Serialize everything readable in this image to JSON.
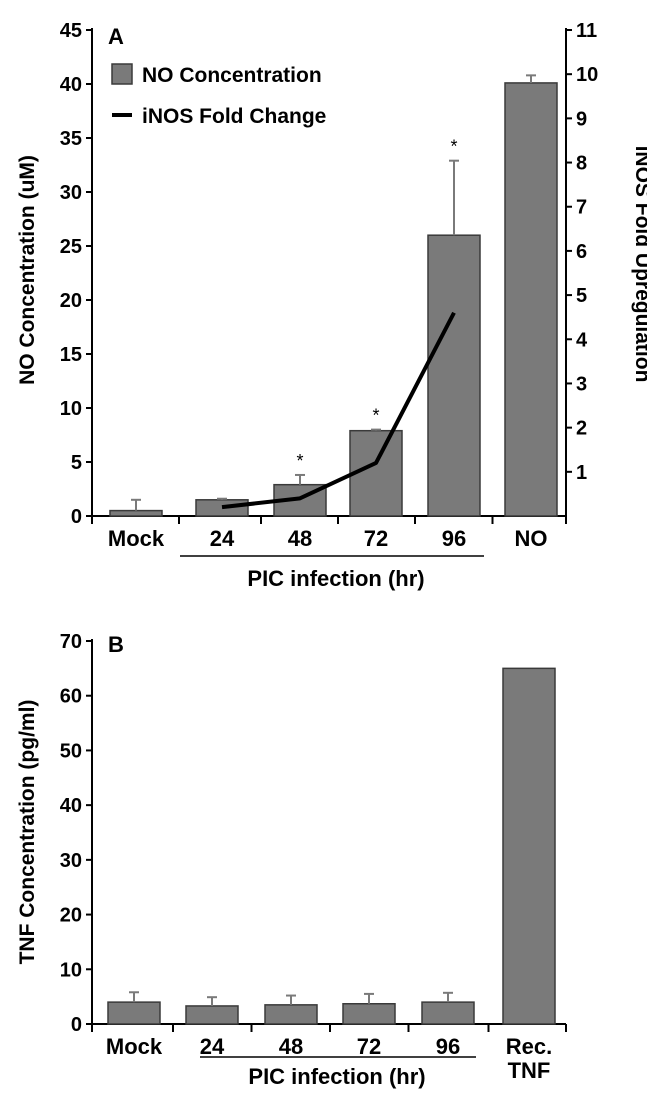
{
  "colors": {
    "bar_fill": "#7a7a7a",
    "bar_stroke": "#3a3a3a",
    "line": "#000000",
    "axis": "#000000"
  },
  "chart_data": [
    {
      "type": "bar",
      "panel_label": "A",
      "categories": [
        "Mock",
        "24",
        "48",
        "72",
        "96",
        "NO"
      ],
      "group_label": "PIC infection (hr)",
      "ylabel": "NO Concentration (uM)",
      "ylim": [
        0,
        45
      ],
      "yticks": [
        "0",
        "5",
        "10",
        "15",
        "20",
        "25",
        "30",
        "35",
        "40",
        "45"
      ],
      "y2label": "iNOS Fold Upregulation",
      "y2lim": [
        0,
        11
      ],
      "y2ticks": [
        "1",
        "2",
        "3",
        "4",
        "5",
        "6",
        "7",
        "8",
        "9",
        "10",
        "11"
      ],
      "legend": {
        "bar": "NO Concentration",
        "line": "iNOS Fold Change",
        "placement": "top-left"
      },
      "series": [
        {
          "name": "NO Concentration",
          "kind": "bar",
          "values": [
            0.5,
            1.5,
            2.9,
            7.9,
            26.0,
            40.1
          ],
          "errors": [
            1.0,
            0.1,
            0.9,
            0.1,
            6.9,
            0.7
          ],
          "markers": [
            "",
            "",
            "*",
            "*",
            "*",
            ""
          ]
        },
        {
          "name": "iNOS Fold Change",
          "kind": "line",
          "axis": "right",
          "x": [
            "24",
            "48",
            "72",
            "96"
          ],
          "values": [
            0.2,
            0.4,
            1.2,
            4.6
          ]
        }
      ],
      "grid": false
    },
    {
      "type": "bar",
      "panel_label": "B",
      "categories": [
        "Mock",
        "24",
        "48",
        "72",
        "96",
        "Rec. TNF"
      ],
      "group_label": "PIC infection (hr)",
      "ylabel": "TNF Concentration (pg/ml)",
      "ylim": [
        0,
        70
      ],
      "yticks": [
        "0",
        "10",
        "20",
        "30",
        "40",
        "50",
        "60",
        "70"
      ],
      "series": [
        {
          "name": "TNF Concentration",
          "kind": "bar",
          "values": [
            4.0,
            3.3,
            3.5,
            3.7,
            4.0,
            65.0
          ],
          "errors": [
            1.8,
            1.6,
            1.7,
            1.8,
            1.7,
            0
          ]
        }
      ],
      "grid": false
    }
  ]
}
